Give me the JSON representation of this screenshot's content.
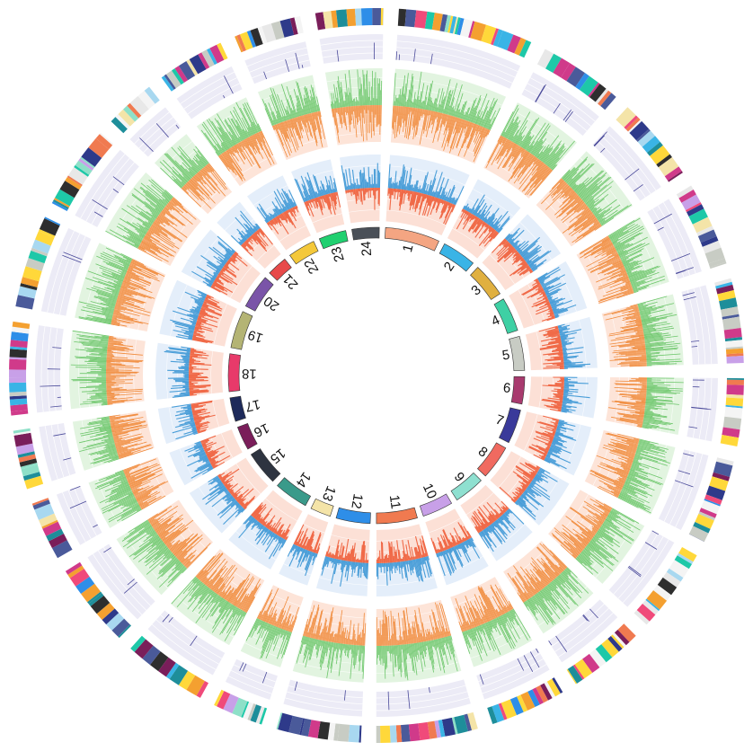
{
  "chromosomes": [
    {
      "label": "1",
      "size": 8.0,
      "color": "#F4A582"
    },
    {
      "label": "2",
      "size": 5.0,
      "color": "#3AB4E6"
    },
    {
      "label": "3",
      "size": 5.0,
      "color": "#E0B040"
    },
    {
      "label": "4",
      "size": 5.0,
      "color": "#3ED0A4"
    },
    {
      "label": "5",
      "size": 5.0,
      "color": "#C8CCC4"
    },
    {
      "label": "6",
      "size": 4.0,
      "color": "#A83A6E"
    },
    {
      "label": "7",
      "size": 5.0,
      "color": "#3A3A9A"
    },
    {
      "label": "8",
      "size": 5.0,
      "color": "#F06A60"
    },
    {
      "label": "9",
      "size": 4.5,
      "color": "#8EE0D0"
    },
    {
      "label": "10",
      "size": 4.5,
      "color": "#C8A0E8"
    },
    {
      "label": "11",
      "size": 6.0,
      "color": "#F07A50"
    },
    {
      "label": "12",
      "size": 5.0,
      "color": "#2E8EE8"
    },
    {
      "label": "13",
      "size": 3.0,
      "color": "#F4E4A8"
    },
    {
      "label": "14",
      "size": 5.0,
      "color": "#3A9A8A"
    },
    {
      "label": "15",
      "size": 5.0,
      "color": "#2E3440"
    },
    {
      "label": "16",
      "size": 3.5,
      "color": "#7A1E5A"
    },
    {
      "label": "17",
      "size": 3.5,
      "color": "#1E2A5A"
    },
    {
      "label": "18",
      "size": 5.5,
      "color": "#E83A6A"
    },
    {
      "label": "19",
      "size": 5.5,
      "color": "#B4B474"
    },
    {
      "label": "20",
      "size": 5.0,
      "color": "#7A54A8"
    },
    {
      "label": "21",
      "size": 3.0,
      "color": "#E84A4A"
    },
    {
      "label": "22",
      "size": 4.0,
      "color": "#F4C83A"
    },
    {
      "label": "23",
      "size": 4.0,
      "color": "#20D070"
    },
    {
      "label": "24",
      "size": 4.0,
      "color": "#4A5058"
    }
  ],
  "tracks": [
    {
      "name": "inner-signal-track",
      "background_up": "#E4EEFA",
      "background_down": "#FCE0D6",
      "color_up": "#4A9ED8",
      "color_down": "#F06A48"
    },
    {
      "name": "middle-signal-track",
      "background_up": "#E2F4E0",
      "background_down": "#FDE4D8",
      "color_up": "#6CC66A",
      "color_down": "#F08A3A"
    },
    {
      "name": "outer-signal-track",
      "background": "#ECEBF6",
      "color": "#4A4A9A"
    }
  ],
  "band_palette": [
    "#1EC8A8",
    "#F04A7A",
    "#2E3A8A",
    "#F4E4A8",
    "#A8D8F0",
    "#7A1E5A",
    "#3AB4E6",
    "#C8CCC4",
    "#F4A030",
    "#2E2E2E",
    "#E8E8E8",
    "#4A5A9A",
    "#8EE0C8",
    "#D03A8A",
    "#F07A50",
    "#1E8E9A",
    "#C8A0E8",
    "#F4F4F4",
    "#2E8EE8",
    "#FFD83A"
  ]
}
